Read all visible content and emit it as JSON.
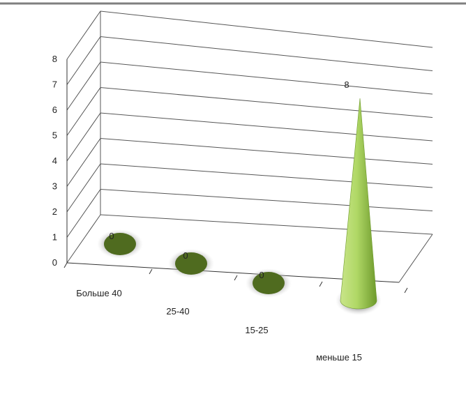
{
  "chart_data": {
    "type": "bar",
    "style": "3d-cone",
    "categories": [
      "Больше 40",
      "25-40",
      "15-25",
      "меньше 15"
    ],
    "series": [
      {
        "values": [
          0,
          0,
          0,
          8
        ]
      }
    ],
    "data_labels": [
      "0",
      "0",
      "0",
      "8"
    ],
    "y_ticks": [
      "0",
      "1",
      "2",
      "3",
      "4",
      "5",
      "6",
      "7",
      "8"
    ],
    "ylim": [
      0,
      8
    ],
    "grid": true,
    "legend": "none",
    "colors": {
      "cone_light": "#c9e58a",
      "cone_mid": "#9fcb4f",
      "cone_dark": "#6e9a2c",
      "base_dark": "#4f6b1f",
      "base_shadow": "#b9b9b9",
      "gridline": "#555555",
      "axis": "#333333",
      "top_rule": "#7f7f7f"
    }
  }
}
